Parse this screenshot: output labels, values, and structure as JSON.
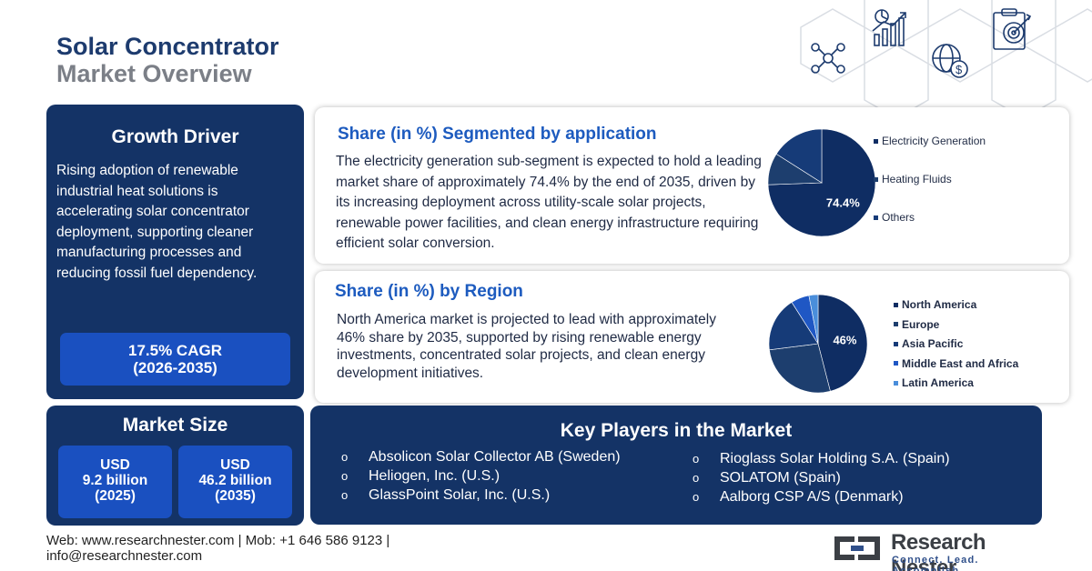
{
  "header": {
    "title_line1": "Solar Concentrator",
    "title_line2": "Market Overview"
  },
  "growth_driver": {
    "title": "Growth Driver",
    "text": "Rising adoption of renewable industrial heat solutions is accelerating solar concentrator deployment, supporting cleaner manufacturing processes and reducing fossil fuel dependency.",
    "cagr_line1": "17.5% CAGR",
    "cagr_line2": "(2026-2035)"
  },
  "market_size": {
    "title": "Market Size",
    "box1": {
      "line1": "USD",
      "line2": "9.2 billion",
      "line3": "(2025)"
    },
    "box2": {
      "line1": "USD",
      "line2": "46.2 billion",
      "line3": "(2035)"
    }
  },
  "application": {
    "title": "Share (in %) Segmented by application",
    "text": "The electricity generation sub-segment is expected to hold a leading market share of approximately 74.4% by the end of 2035, driven by its increasing deployment across utility-scale solar projects, renewable power facilities, and clean energy infrastructure requiring efficient solar conversion."
  },
  "region": {
    "title": "Share (in %) by Region",
    "text": "North America market is projected to lead with approximately 46% share by 2035, supported by rising renewable energy investments, concentrated solar projects, and clean energy development initiatives."
  },
  "chart_data": [
    {
      "type": "pie",
      "categories": [
        "Electricity Generation",
        "Heating Fluids",
        "Others"
      ],
      "values": [
        74.4,
        9.6,
        16.0
      ],
      "data_labels": [
        "74.4%",
        "",
        ""
      ],
      "legend_position": "right",
      "colors": [
        "#0f2d63",
        "#1d3e6e",
        "#163b78"
      ]
    },
    {
      "type": "pie",
      "categories": [
        "North America",
        "Europe",
        "Asia Pacific",
        "Middle East and Africa",
        "Latin America"
      ],
      "values": [
        46,
        27,
        18,
        6,
        3
      ],
      "data_labels": [
        "46%",
        "",
        "",
        "",
        ""
      ],
      "legend_position": "right",
      "colors": [
        "#0f2d63",
        "#1d3e6e",
        "#163b78",
        "#1f57c4",
        "#4a8edb"
      ]
    }
  ],
  "key_players": {
    "title": "Key Players in the Market",
    "bullet": "o",
    "col1": [
      "Absolicon Solar Collector AB (Sweden)",
      "Heliogen, Inc. (U.S.)",
      "GlassPoint Solar, Inc. (U.S.)"
    ],
    "col2": [
      "Rioglass Solar Holding S.A. (Spain)",
      "SOLATOM (Spain)",
      "Aalborg CSP A/S (Denmark)"
    ]
  },
  "footer": {
    "line1": "Web: www.researchnester.com | Mob: +1 646 586 9123 |",
    "line2": "info@researchnester.com"
  },
  "logo": {
    "name": "Research Nester",
    "tagline": "Connect. Lead. Accomplish"
  },
  "colors": {
    "navy_panel": "#143366",
    "blue_box": "#1a50c0",
    "heading_blue": "#1d5bbf",
    "title_navy": "#1d3b6e",
    "title_gray": "#7b7f87"
  },
  "icons": [
    "network-people-icon",
    "growth-chart-icon",
    "globe-dollar-icon",
    "target-clipboard-icon"
  ]
}
